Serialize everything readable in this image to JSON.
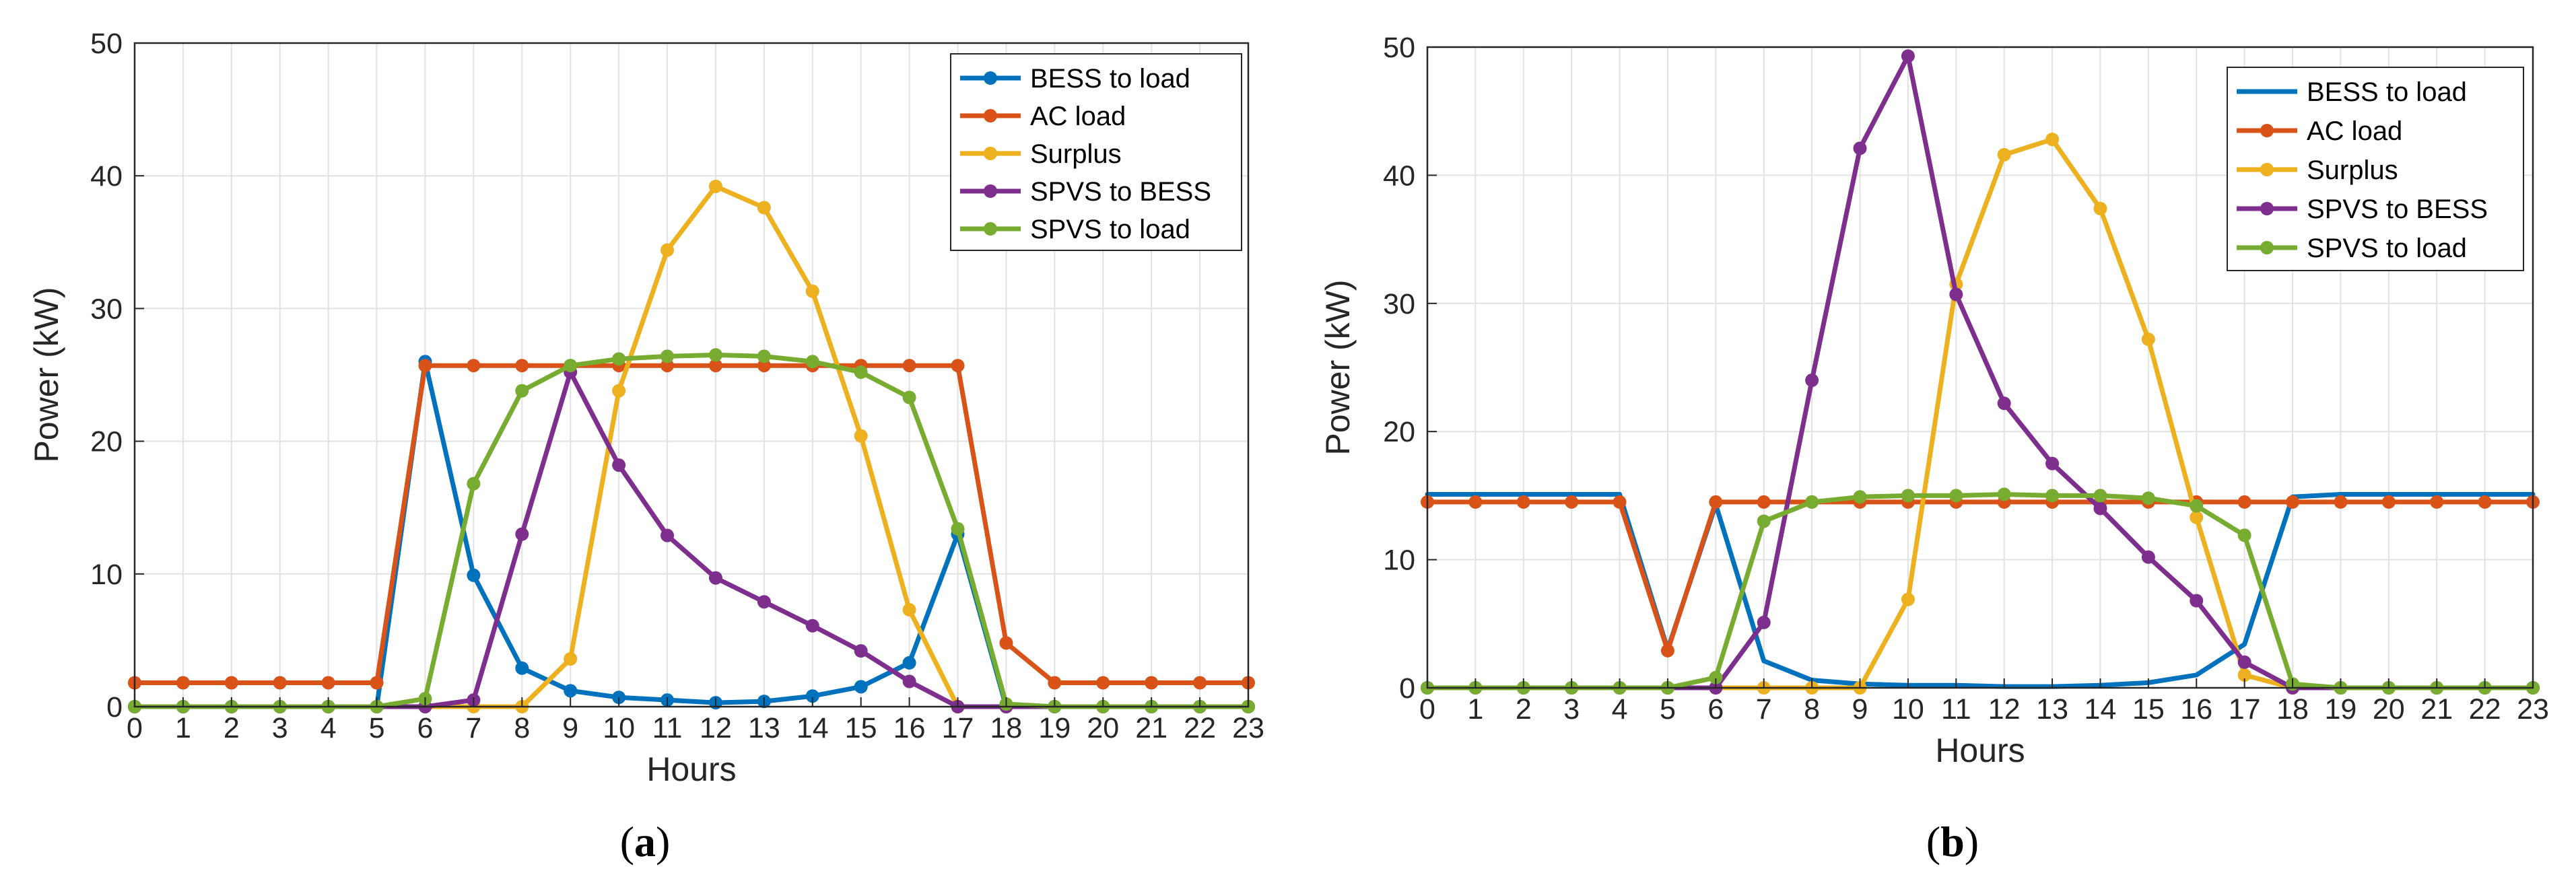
{
  "colors": {
    "bess_to_load": "#0072BD",
    "ac_load": "#D95319",
    "surplus": "#EDB120",
    "spvs_to_bess": "#7E2F8E",
    "spvs_to_load": "#77AC30",
    "grid": "#e2e2e2",
    "axis": "#262626"
  },
  "chart_data": [
    {
      "type": "line",
      "panel_label": "a",
      "title": "",
      "xlabel": "Hours",
      "ylabel": "Power (kW)",
      "xlim": [
        0,
        23
      ],
      "ylim": [
        0,
        50
      ],
      "xticks": [
        "0",
        "1",
        "2",
        "3",
        "4",
        "5",
        "6",
        "7",
        "8",
        "9",
        "10",
        "11",
        "12",
        "13",
        "14",
        "15",
        "16",
        "17",
        "18",
        "19",
        "20",
        "21",
        "22",
        "23"
      ],
      "yticks": [
        "0",
        "10",
        "20",
        "30",
        "40",
        "50"
      ],
      "grid": true,
      "legend_position": "top-right",
      "x": [
        0,
        1,
        2,
        3,
        4,
        5,
        6,
        7,
        8,
        9,
        10,
        11,
        12,
        13,
        14,
        15,
        16,
        17,
        18,
        19,
        20,
        21,
        22,
        23
      ],
      "series": [
        {
          "name": "BESS to load",
          "color_key": "bess_to_load",
          "values": [
            0,
            0,
            0,
            0,
            0,
            0,
            26,
            9.9,
            2.9,
            1.2,
            0.7,
            0.5,
            0.3,
            0.4,
            0.8,
            1.5,
            3.3,
            13,
            0,
            0,
            0,
            0,
            0,
            0
          ]
        },
        {
          "name": "AC load",
          "color_key": "ac_load",
          "values": [
            1.8,
            1.8,
            1.8,
            1.8,
            1.8,
            1.8,
            25.7,
            25.7,
            25.7,
            25.7,
            25.7,
            25.7,
            25.7,
            25.7,
            25.7,
            25.7,
            25.7,
            25.7,
            4.8,
            1.8,
            1.8,
            1.8,
            1.8,
            1.8
          ]
        },
        {
          "name": "Surplus",
          "color_key": "surplus",
          "values": [
            0,
            0,
            0,
            0,
            0,
            0,
            0,
            0,
            0,
            3.6,
            23.8,
            34.4,
            39.2,
            37.6,
            31.3,
            20.4,
            7.3,
            0,
            0,
            0,
            0,
            0,
            0,
            0
          ]
        },
        {
          "name": "SPVS to BESS",
          "color_key": "spvs_to_bess",
          "values": [
            0,
            0,
            0,
            0,
            0,
            0,
            0,
            0.5,
            13,
            25.2,
            18.2,
            12.9,
            9.7,
            7.9,
            6.1,
            4.2,
            1.9,
            0,
            0,
            0,
            0,
            0,
            0,
            0
          ]
        },
        {
          "name": "SPVS to load",
          "color_key": "spvs_to_load",
          "values": [
            0,
            0,
            0,
            0,
            0,
            0,
            0.6,
            16.8,
            23.8,
            25.7,
            26.2,
            26.4,
            26.5,
            26.4,
            26,
            25.2,
            23.3,
            13.4,
            0.2,
            0,
            0,
            0,
            0,
            0
          ]
        }
      ]
    },
    {
      "type": "line",
      "panel_label": "b",
      "title": "",
      "xlabel": "Hours",
      "ylabel": "Power (kW)",
      "xlim": [
        0,
        23
      ],
      "ylim": [
        0,
        50
      ],
      "xticks": [
        "0",
        "1",
        "2",
        "3",
        "4",
        "5",
        "6",
        "7",
        "8",
        "9",
        "10",
        "11",
        "12",
        "13",
        "14",
        "15",
        "16",
        "17",
        "18",
        "19",
        "20",
        "21",
        "22",
        "23"
      ],
      "yticks": [
        "0",
        "10",
        "20",
        "30",
        "40",
        "50"
      ],
      "grid": true,
      "legend_position": "top-right",
      "x": [
        0,
        1,
        2,
        3,
        4,
        5,
        6,
        7,
        8,
        9,
        10,
        11,
        12,
        13,
        14,
        15,
        16,
        17,
        18,
        19,
        20,
        21,
        22,
        23
      ],
      "series": [
        {
          "name": "BESS to load",
          "color_key": "bess_to_load",
          "markers": false,
          "values": [
            15.1,
            15.1,
            15.1,
            15.1,
            15.1,
            3,
            14.3,
            2.1,
            0.6,
            0.3,
            0.2,
            0.2,
            0.1,
            0.1,
            0.2,
            0.4,
            1,
            3.4,
            14.9,
            15.1,
            15.1,
            15.1,
            15.1,
            15.1
          ]
        },
        {
          "name": "AC load",
          "color_key": "ac_load",
          "markers": true,
          "values": [
            14.5,
            14.5,
            14.5,
            14.5,
            14.5,
            2.9,
            14.5,
            14.5,
            14.5,
            14.5,
            14.5,
            14.5,
            14.5,
            14.5,
            14.5,
            14.5,
            14.5,
            14.5,
            14.5,
            14.5,
            14.5,
            14.5,
            14.5,
            14.5
          ]
        },
        {
          "name": "Surplus",
          "color_key": "surplus",
          "markers": true,
          "values": [
            0,
            0,
            0,
            0,
            0,
            0,
            0,
            0,
            0,
            0,
            6.9,
            31.5,
            41.6,
            42.8,
            37.4,
            27.2,
            13.3,
            1,
            0,
            0,
            0,
            0,
            0,
            0
          ]
        },
        {
          "name": "SPVS to BESS",
          "color_key": "spvs_to_bess",
          "markers": true,
          "values": [
            0,
            0,
            0,
            0,
            0,
            0,
            0,
            5.1,
            24,
            42.1,
            49.3,
            30.7,
            22.2,
            17.5,
            14,
            10.2,
            6.8,
            2,
            0,
            0,
            0,
            0,
            0,
            0
          ]
        },
        {
          "name": "SPVS to load",
          "color_key": "spvs_to_load",
          "markers": true,
          "values": [
            0,
            0,
            0,
            0,
            0,
            0,
            0.8,
            13,
            14.5,
            14.9,
            15,
            15,
            15.1,
            15,
            15,
            14.8,
            14.2,
            11.9,
            0.3,
            0,
            0,
            0,
            0,
            0
          ]
        }
      ]
    }
  ],
  "captions": [
    {
      "open": "(",
      "letter": "a",
      "close": ")"
    },
    {
      "open": "(",
      "letter": "b",
      "close": ")"
    }
  ]
}
